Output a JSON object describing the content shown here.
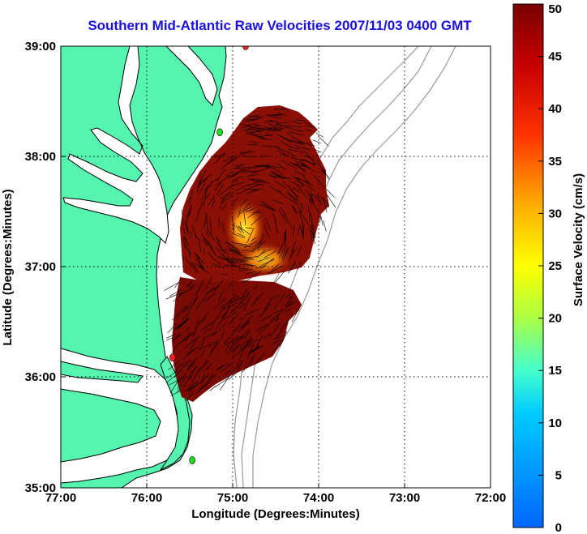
{
  "title": "Southern Mid-Atlantic Raw Velocities 2007/11/03 0400 GMT",
  "xlabel": "Longitude (Degrees:Minutes)",
  "ylabel": "Latitude (Degrees:Minutes)",
  "colorbar_label": "Surface Velocity (cm/s)",
  "colors": {
    "land": "#55f5b0",
    "coast": "#000000",
    "bathymetry": "#9a9a9a",
    "grid": "#000000",
    "station": "#ff2020",
    "station_alt": "#22dd22",
    "vectors": "#000000"
  },
  "chart_data": {
    "type": "heatmap",
    "title": "Southern Mid-Atlantic Raw Velocities 2007/11/03 0400 GMT",
    "xlabel": "Longitude (Degrees:Minutes)",
    "ylabel": "Latitude (Degrees:Minutes)",
    "xlim": [
      -77,
      -72
    ],
    "ylim": [
      35,
      39
    ],
    "x_ticks": [
      "77:00",
      "76:00",
      "75:00",
      "74:00",
      "73:00",
      "72:00"
    ],
    "y_ticks": [
      "39:00",
      "38:00",
      "37:00",
      "36:00",
      "35:00"
    ],
    "grid": true,
    "colorbar": {
      "label": "Surface Velocity (cm/s)",
      "min": 0,
      "max": 50,
      "ticks": [
        "50",
        "45",
        "40",
        "35",
        "30",
        "25",
        "20",
        "15",
        "10",
        "5",
        "0"
      ]
    },
    "stations": [
      {
        "lon": -74.85,
        "lat": 39.0,
        "color": "red"
      },
      {
        "lon": -75.15,
        "lat": 38.22,
        "color": "green"
      },
      {
        "lon": -75.7,
        "lat": 36.18,
        "color": "red"
      },
      {
        "lon": -75.47,
        "lat": 35.25,
        "color": "green"
      }
    ],
    "high_speed_regions": [
      {
        "lon": -74.9,
        "lat": 37.25,
        "speed": 28
      },
      {
        "lon": -74.55,
        "lat": 36.95,
        "speed": 35
      }
    ],
    "typical_speed": 50
  }
}
